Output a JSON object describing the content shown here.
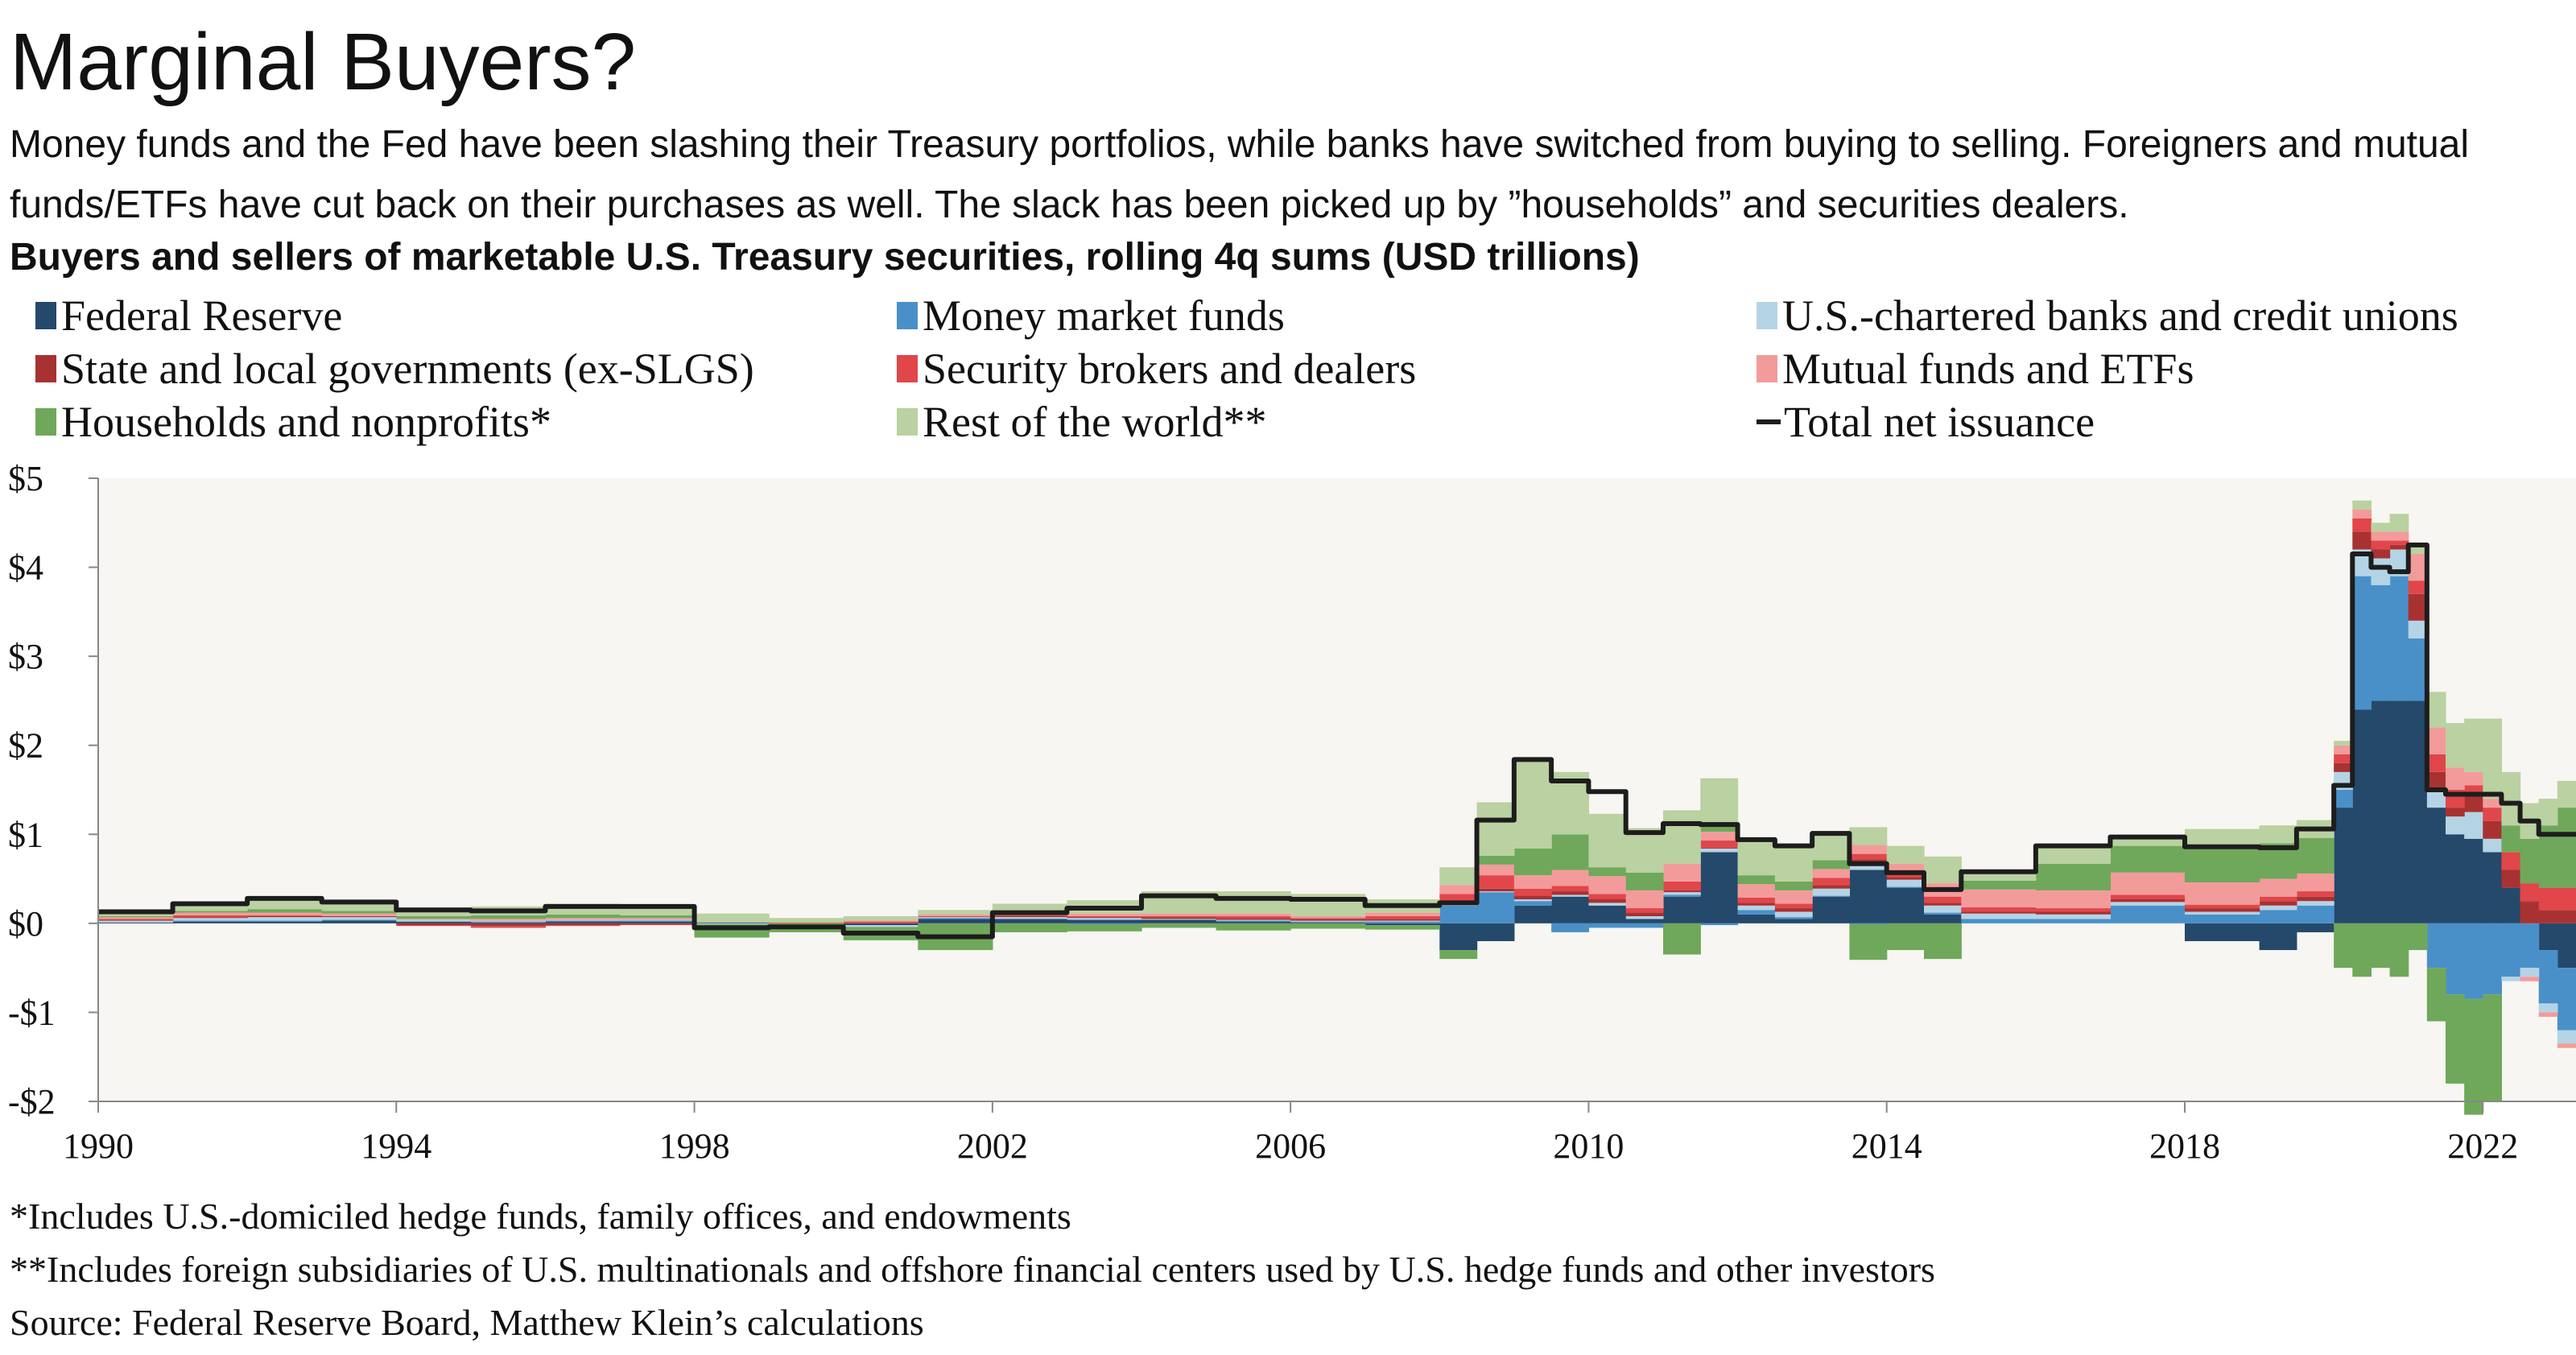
{
  "header": {
    "title": "Marginal Buyers?",
    "subtitle": "Money funds and the Fed have been slashing their Treasury portfolios, while banks have switched from buying to selling. Foreigners and mutual funds/ETFs have cut back on their purchases as well. The slack has been picked up by ”households” and securities dealers."
  },
  "footnotes": {
    "note1": "*Includes U.S.-domiciled hedge funds, family offices, and endowments",
    "note2": "**Includes foreign subsidiaries of U.S. multinationals and offshore financial centers used by U.S. hedge funds and other investors",
    "source": "Source: Federal Reserve Board, Matthew Klein’s calculations"
  },
  "chart_data": {
    "type": "area",
    "subtype": "stacked-step",
    "title": "Buyers and sellers of marketable U.S. Treasury securities, rolling 4q sums (USD trillions)",
    "xlabel": "",
    "ylabel": "",
    "xlim": [
      1990,
      2023.25
    ],
    "ylim": [
      -2,
      5
    ],
    "x_ticks": [
      1990,
      1994,
      1998,
      2002,
      2006,
      2010,
      2014,
      2018,
      2022
    ],
    "x_tick_labels": [
      "1990",
      "1994",
      "1998",
      "2002",
      "2006",
      "2010",
      "2014",
      "2018",
      "2022"
    ],
    "y_ticks": [
      -2,
      -1,
      0,
      1,
      2,
      3,
      4,
      5
    ],
    "y_tick_labels": [
      "-$2",
      "-$1",
      "$0",
      "$1",
      "$2",
      "$3",
      "$4",
      "$5"
    ],
    "grid": false,
    "legend_position": "top",
    "x": [
      1990,
      1991,
      1992,
      1993,
      1994,
      1995,
      1996,
      1997,
      1998,
      1999,
      2000,
      2001,
      2002,
      2003,
      2004,
      2005,
      2006,
      2007,
      2008,
      2008.5,
      2009,
      2009.5,
      2010,
      2010.5,
      2011,
      2011.5,
      2012,
      2012.5,
      2013,
      2013.5,
      2014,
      2014.5,
      2015,
      2016,
      2017,
      2018,
      2019,
      2019.5,
      2020,
      2020.25,
      2020.5,
      2020.75,
      2021,
      2021.25,
      2021.5,
      2021.75,
      2022,
      2022.25,
      2022.5,
      2022.75,
      2023
    ],
    "series": [
      {
        "name": "Federal Reserve",
        "color": "#24496b",
        "values": [
          0.01,
          0.02,
          0.02,
          0.03,
          0.02,
          0.01,
          0.02,
          0.02,
          0.01,
          0.0,
          -0.02,
          0.05,
          0.05,
          0.04,
          0.04,
          0.02,
          0.01,
          -0.02,
          -0.3,
          -0.2,
          0.2,
          0.3,
          0.2,
          0.05,
          0.3,
          0.8,
          0.1,
          0.05,
          0.3,
          0.6,
          0.4,
          0.1,
          0.0,
          0.0,
          0.0,
          -0.2,
          -0.3,
          -0.1,
          1.3,
          2.4,
          2.5,
          2.5,
          2.5,
          1.3,
          1.0,
          0.95,
          0.8,
          0.4,
          0.0,
          -0.3,
          -0.5
        ]
      },
      {
        "name": "Money market funds",
        "color": "#4a90c8",
        "values": [
          0.0,
          0.01,
          0.01,
          0.01,
          0.0,
          0.01,
          0.01,
          0.01,
          0.0,
          0.0,
          0.0,
          0.01,
          0.0,
          -0.01,
          0.0,
          0.01,
          0.01,
          0.02,
          0.2,
          0.35,
          0.05,
          -0.1,
          -0.05,
          -0.05,
          0.02,
          -0.02,
          0.05,
          0.02,
          0.01,
          -0.01,
          0.01,
          0.02,
          0.05,
          0.05,
          0.2,
          0.1,
          0.15,
          0.2,
          0.2,
          1.5,
          1.3,
          1.4,
          0.7,
          -0.5,
          -0.8,
          -0.85,
          -0.8,
          -0.6,
          -0.5,
          -0.6,
          -0.7
        ]
      },
      {
        "name": "U.S.-chartered banks and credit unions",
        "color": "#b4d4e6",
        "values": [
          0.02,
          0.03,
          0.04,
          0.03,
          0.02,
          0.01,
          0.01,
          0.01,
          -0.01,
          0.0,
          -0.02,
          0.01,
          0.02,
          0.02,
          0.01,
          0.01,
          0.01,
          0.01,
          0.01,
          0.01,
          0.02,
          0.02,
          0.03,
          0.03,
          0.03,
          0.04,
          0.05,
          0.06,
          0.08,
          0.08,
          0.08,
          0.08,
          0.06,
          0.05,
          0.04,
          0.03,
          0.05,
          0.05,
          0.2,
          0.3,
          0.3,
          0.3,
          0.2,
          0.2,
          0.2,
          0.3,
          0.15,
          -0.05,
          -0.1,
          -0.1,
          -0.15
        ]
      },
      {
        "name": "State and local governments (ex-SLGS)",
        "color": "#a83232",
        "values": [
          0.01,
          0.01,
          0.01,
          0.01,
          -0.02,
          -0.03,
          -0.02,
          -0.01,
          0.0,
          0.0,
          0.0,
          0.0,
          0.01,
          0.01,
          0.02,
          0.02,
          0.02,
          0.02,
          0.02,
          0.03,
          0.04,
          0.04,
          0.04,
          0.04,
          0.02,
          0.01,
          0.03,
          0.04,
          0.04,
          0.04,
          0.03,
          0.03,
          0.02,
          0.03,
          0.03,
          0.04,
          0.05,
          0.05,
          0.1,
          0.2,
          0.1,
          0.05,
          0.3,
          0.2,
          0.1,
          0.2,
          0.2,
          0.2,
          0.25,
          0.15,
          0.15
        ]
      },
      {
        "name": "Security brokers and dealers",
        "color": "#e0464a",
        "values": [
          0.01,
          0.02,
          0.01,
          0.0,
          -0.01,
          -0.02,
          -0.01,
          -0.01,
          0.0,
          0.01,
          0.02,
          0.01,
          0.01,
          0.01,
          0.01,
          0.02,
          0.01,
          0.03,
          0.1,
          0.15,
          0.08,
          0.06,
          0.06,
          0.05,
          0.1,
          0.08,
          0.06,
          0.05,
          0.08,
          0.06,
          0.05,
          0.07,
          0.05,
          0.04,
          0.05,
          0.04,
          0.05,
          0.06,
          0.1,
          0.15,
          0.1,
          0.05,
          0.15,
          0.2,
          0.2,
          0.1,
          0.15,
          0.2,
          0.2,
          0.25,
          0.25
        ]
      },
      {
        "name": "Mutual funds and ETFs",
        "color": "#f39b9b",
        "values": [
          0.02,
          0.03,
          0.03,
          0.03,
          0.01,
          0.02,
          0.02,
          0.02,
          0.0,
          0.0,
          0.01,
          0.02,
          0.03,
          0.03,
          0.03,
          0.03,
          0.02,
          0.04,
          0.1,
          0.12,
          0.15,
          0.18,
          0.2,
          0.2,
          0.2,
          0.1,
          0.15,
          0.15,
          0.1,
          0.1,
          0.1,
          0.15,
          0.2,
          0.2,
          0.25,
          0.25,
          0.2,
          0.2,
          0.1,
          0.1,
          0.1,
          0.1,
          0.3,
          0.3,
          0.25,
          0.15,
          0.1,
          0.0,
          -0.05,
          -0.05,
          -0.05
        ]
      },
      {
        "name": "Households and nonprofits*",
        "color": "#6fa85a",
        "values": [
          0.01,
          0.02,
          0.04,
          0.03,
          0.03,
          0.04,
          0.04,
          0.03,
          -0.15,
          -0.1,
          -0.15,
          -0.3,
          -0.1,
          -0.08,
          -0.05,
          -0.08,
          -0.06,
          -0.05,
          -0.1,
          0.1,
          0.3,
          0.4,
          0.1,
          0.2,
          -0.35,
          0.1,
          0.1,
          0.1,
          0.1,
          -0.4,
          -0.3,
          -0.4,
          0.1,
          0.3,
          0.3,
          0.4,
          0.4,
          0.4,
          -0.5,
          -0.6,
          -0.5,
          -0.6,
          -0.3,
          -0.6,
          -1.0,
          -1.3,
          -1.2,
          0.3,
          0.5,
          0.7,
          0.9
        ]
      },
      {
        "name": "Rest of the world**",
        "color": "#bad1a1",
        "values": [
          0.05,
          0.08,
          0.12,
          0.1,
          0.1,
          0.1,
          0.12,
          0.12,
          0.1,
          0.05,
          0.05,
          0.05,
          0.1,
          0.15,
          0.25,
          0.25,
          0.25,
          0.15,
          0.2,
          0.6,
          1.0,
          0.7,
          0.6,
          0.5,
          0.6,
          0.5,
          0.4,
          0.4,
          0.3,
          0.2,
          0.2,
          0.3,
          0.1,
          0.2,
          0.1,
          0.2,
          0.2,
          0.2,
          0.05,
          0.1,
          0.1,
          0.2,
          0.1,
          0.4,
          0.5,
          0.6,
          0.9,
          0.6,
          0.4,
          0.3,
          0.3
        ]
      },
      {
        "name": "Total net issuance",
        "type": "line",
        "color": "#1d1d1d",
        "values": [
          0.13,
          0.22,
          0.28,
          0.24,
          0.15,
          0.14,
          0.19,
          0.19,
          -0.05,
          -0.04,
          -0.11,
          -0.15,
          0.12,
          0.17,
          0.31,
          0.28,
          0.27,
          0.2,
          0.23,
          1.16,
          1.84,
          1.6,
          1.48,
          1.02,
          1.12,
          1.11,
          0.94,
          0.87,
          1.01,
          0.67,
          0.57,
          0.38,
          0.58,
          0.87,
          0.97,
          0.86,
          0.85,
          1.06,
          1.55,
          4.15,
          4.0,
          3.95,
          4.25,
          1.5,
          1.45,
          1.45,
          1.45,
          1.35,
          1.15,
          1.0,
          1.0
        ]
      }
    ]
  }
}
